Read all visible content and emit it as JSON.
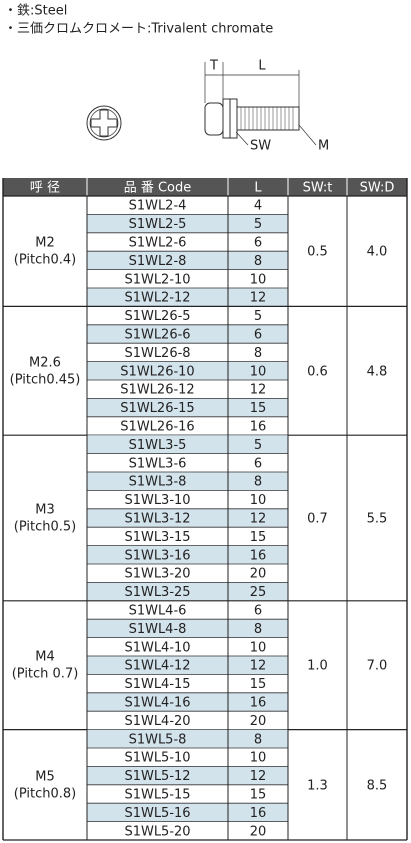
{
  "notes": [
    "・鉄:Steel",
    "・三価クロムクロメート:Trivalent chromate"
  ],
  "diagram": {
    "t": "T",
    "l": "L",
    "sw": "SW",
    "m": "M"
  },
  "table": {
    "header": [
      "呼 径",
      "品 番 Code",
      "L",
      "SW:t",
      "SW:D"
    ],
    "groups": [
      {
        "size": "M2",
        "pitch": "(Pitch0.4)",
        "t": "0.5",
        "d": "4.0",
        "rows": [
          {
            "code": "S1WL2-4",
            "l": 4,
            "shaded": false
          },
          {
            "code": "S1WL2-5",
            "l": 5,
            "shaded": true
          },
          {
            "code": "S1WL2-6",
            "l": 6,
            "shaded": false
          },
          {
            "code": "S1WL2-8",
            "l": 8,
            "shaded": true
          },
          {
            "code": "S1WL2-10",
            "l": 10,
            "shaded": false
          },
          {
            "code": "S1WL2-12",
            "l": 12,
            "shaded": true
          }
        ]
      },
      {
        "size": "M2.6",
        "pitch": "(Pitch0.45)",
        "t": "0.6",
        "d": "4.8",
        "rows": [
          {
            "code": "S1WL26-5",
            "l": 5,
            "shaded": false
          },
          {
            "code": "S1WL26-6",
            "l": 6,
            "shaded": true
          },
          {
            "code": "S1WL26-8",
            "l": 8,
            "shaded": false
          },
          {
            "code": "S1WL26-10",
            "l": 10,
            "shaded": true
          },
          {
            "code": "S1WL26-12",
            "l": 12,
            "shaded": false
          },
          {
            "code": "S1WL26-15",
            "l": 15,
            "shaded": true
          },
          {
            "code": "S1WL26-16",
            "l": 16,
            "shaded": false
          }
        ]
      },
      {
        "size": "M3",
        "pitch": "(Pitch0.5)",
        "t": "0.7",
        "d": "5.5",
        "rows": [
          {
            "code": "S1WL3-5",
            "l": 5,
            "shaded": true
          },
          {
            "code": "S1WL3-6",
            "l": 6,
            "shaded": false
          },
          {
            "code": "S1WL3-8",
            "l": 8,
            "shaded": true
          },
          {
            "code": "S1WL3-10",
            "l": 10,
            "shaded": false
          },
          {
            "code": "S1WL3-12",
            "l": 12,
            "shaded": true
          },
          {
            "code": "S1WL3-15",
            "l": 15,
            "shaded": false
          },
          {
            "code": "S1WL3-16",
            "l": 16,
            "shaded": true
          },
          {
            "code": "S1WL3-20",
            "l": 20,
            "shaded": false
          },
          {
            "code": "S1WL3-25",
            "l": 25,
            "shaded": true
          }
        ]
      },
      {
        "size": "M4",
        "pitch": "(Pitch 0.7)",
        "t": "1.0",
        "d": "7.0",
        "rows": [
          {
            "code": "S1WL4-6",
            "l": 6,
            "shaded": false
          },
          {
            "code": "S1WL4-8",
            "l": 8,
            "shaded": true
          },
          {
            "code": "S1WL4-10",
            "l": 10,
            "shaded": false
          },
          {
            "code": "S1WL4-12",
            "l": 12,
            "shaded": true
          },
          {
            "code": "S1WL4-15",
            "l": 15,
            "shaded": false
          },
          {
            "code": "S1WL4-16",
            "l": 16,
            "shaded": true
          },
          {
            "code": "S1WL4-20",
            "l": 20,
            "shaded": false
          }
        ]
      },
      {
        "size": "M5",
        "pitch": "(Pitch0.8)",
        "t": "1.3",
        "d": "8.5",
        "rows": [
          {
            "code": "S1WL5-8",
            "l": 8,
            "shaded": true
          },
          {
            "code": "S1WL5-10",
            "l": 10,
            "shaded": false
          },
          {
            "code": "S1WL5-12",
            "l": 12,
            "shaded": true
          },
          {
            "code": "S1WL5-15",
            "l": 15,
            "shaded": false
          },
          {
            "code": "S1WL5-16",
            "l": 16,
            "shaded": true
          },
          {
            "code": "S1WL5-20",
            "l": 20,
            "shaded": false
          }
        ]
      }
    ]
  }
}
